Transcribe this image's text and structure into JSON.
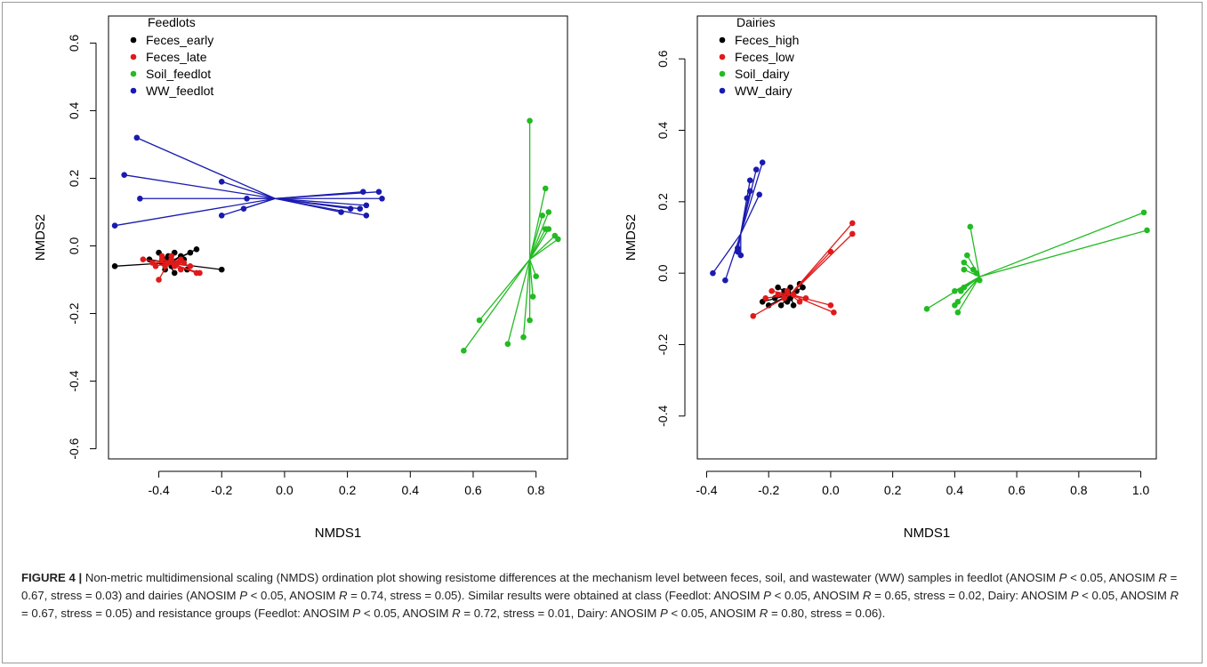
{
  "caption": {
    "label": "FIGURE 4 |",
    "parts": [
      {
        "t": " Non-metric multidimensional scaling (NMDS) ordination plot showing resistome differences at the mechanism level between feces, soil, and wastewater (WW) samples in feedlot (ANOSIM "
      },
      {
        "t": "P",
        "i": true
      },
      {
        "t": " < 0.05, ANOSIM "
      },
      {
        "t": "R",
        "i": true
      },
      {
        "t": " = 0.67, stress = 0.03) and dairies (ANOSIM "
      },
      {
        "t": "P",
        "i": true
      },
      {
        "t": " < 0.05, ANOSIM "
      },
      {
        "t": "R",
        "i": true
      },
      {
        "t": " = 0.74, stress = 0.05). Similar results were obtained at class (Feedlot: ANOSIM "
      },
      {
        "t": "P",
        "i": true
      },
      {
        "t": " < 0.05, ANOSIM "
      },
      {
        "t": "R",
        "i": true
      },
      {
        "t": " = 0.65, stress = 0.02, Dairy: ANOSIM "
      },
      {
        "t": "P",
        "i": true
      },
      {
        "t": " < 0.05, ANOSIM "
      },
      {
        "t": "R",
        "i": true
      },
      {
        "t": " = 0.67, stress = 0.05) and resistance groups (Feedlot: ANOSIM "
      },
      {
        "t": "P",
        "i": true
      },
      {
        "t": " < 0.05, ANOSIM "
      },
      {
        "t": "R",
        "i": true
      },
      {
        "t": " = 0.72, stress = 0.01, Dairy: ANOSIM "
      },
      {
        "t": "P",
        "i": true
      },
      {
        "t": " < 0.05, ANOSIM "
      },
      {
        "t": "R",
        "i": true
      },
      {
        "t": " = 0.80, stress = 0.06)."
      }
    ]
  },
  "chart_data": [
    {
      "type": "scatter",
      "legend_title": "Feedlots",
      "legend_position": "top-left",
      "xlabel": "NMDS1",
      "ylabel": "NMDS2",
      "xlim": [
        -0.56,
        0.9
      ],
      "ylim": [
        -0.63,
        0.68
      ],
      "xticks": [
        -0.4,
        -0.2,
        0.0,
        0.2,
        0.4,
        0.6,
        0.8
      ],
      "xtick_labels": [
        "-0.4",
        "-0.2",
        "0.0",
        "0.2",
        "0.4",
        "0.6",
        "0.8"
      ],
      "yticks": [
        -0.6,
        -0.4,
        -0.2,
        0.0,
        0.2,
        0.4,
        0.6
      ],
      "ytick_labels": [
        "-0.6",
        "-0.4",
        "-0.2",
        "0.0",
        "0.2",
        "0.4",
        "0.6"
      ],
      "grid": false,
      "series": [
        {
          "name": "Feces_early",
          "color": "#000000",
          "centroid": [
            -0.37,
            -0.05
          ],
          "points": [
            [
              -0.54,
              -0.06
            ],
            [
              -0.43,
              -0.04
            ],
            [
              -0.4,
              -0.02
            ],
            [
              -0.39,
              -0.05
            ],
            [
              -0.38,
              -0.07
            ],
            [
              -0.37,
              -0.03
            ],
            [
              -0.36,
              -0.06
            ],
            [
              -0.35,
              -0.02
            ],
            [
              -0.34,
              -0.05
            ],
            [
              -0.33,
              -0.03
            ],
            [
              -0.32,
              -0.04
            ],
            [
              -0.31,
              -0.07
            ],
            [
              -0.3,
              -0.02
            ],
            [
              -0.28,
              -0.01
            ],
            [
              -0.35,
              -0.08
            ],
            [
              -0.38,
              -0.04
            ],
            [
              -0.2,
              -0.07
            ]
          ]
        },
        {
          "name": "Feces_late",
          "color": "#e01a1a",
          "centroid": [
            -0.37,
            -0.05
          ],
          "points": [
            [
              -0.45,
              -0.04
            ],
            [
              -0.42,
              -0.05
            ],
            [
              -0.41,
              -0.06
            ],
            [
              -0.4,
              -0.1
            ],
            [
              -0.39,
              -0.04
            ],
            [
              -0.38,
              -0.06
            ],
            [
              -0.37,
              -0.05
            ],
            [
              -0.36,
              -0.04
            ],
            [
              -0.35,
              -0.06
            ],
            [
              -0.34,
              -0.05
            ],
            [
              -0.33,
              -0.07
            ],
            [
              -0.32,
              -0.05
            ],
            [
              -0.3,
              -0.06
            ],
            [
              -0.28,
              -0.08
            ],
            [
              -0.27,
              -0.08
            ],
            [
              -0.39,
              -0.03
            ],
            [
              -0.36,
              -0.03
            ],
            [
              -0.33,
              -0.04
            ]
          ]
        },
        {
          "name": "Soil_feedlot",
          "color": "#22bb22",
          "centroid": [
            0.78,
            -0.04
          ],
          "points": [
            [
              0.78,
              0.37
            ],
            [
              0.83,
              0.17
            ],
            [
              0.82,
              0.09
            ],
            [
              0.84,
              0.1
            ],
            [
              0.83,
              0.05
            ],
            [
              0.84,
              0.05
            ],
            [
              0.86,
              0.03
            ],
            [
              0.87,
              0.02
            ],
            [
              0.8,
              -0.09
            ],
            [
              0.79,
              -0.15
            ],
            [
              0.78,
              -0.22
            ],
            [
              0.76,
              -0.27
            ],
            [
              0.71,
              -0.29
            ],
            [
              0.62,
              -0.22
            ],
            [
              0.57,
              -0.31
            ]
          ]
        },
        {
          "name": "WW_feedlot",
          "color": "#1a1ab0",
          "centroid": [
            -0.03,
            0.14
          ],
          "points": [
            [
              -0.47,
              0.32
            ],
            [
              -0.51,
              0.21
            ],
            [
              -0.46,
              0.14
            ],
            [
              -0.54,
              0.06
            ],
            [
              -0.2,
              0.19
            ],
            [
              -0.12,
              0.14
            ],
            [
              -0.13,
              0.11
            ],
            [
              -0.2,
              0.09
            ],
            [
              0.18,
              0.1
            ],
            [
              0.21,
              0.11
            ],
            [
              0.24,
              0.11
            ],
            [
              0.26,
              0.12
            ],
            [
              0.25,
              0.16
            ],
            [
              0.3,
              0.16
            ],
            [
              0.31,
              0.14
            ],
            [
              0.26,
              0.09
            ]
          ]
        }
      ]
    },
    {
      "type": "scatter",
      "legend_title": "Dairies",
      "legend_position": "top-left",
      "xlabel": "NMDS1",
      "ylabel": "NMDS2",
      "xlim": [
        -0.43,
        1.05
      ],
      "ylim": [
        -0.52,
        0.72
      ],
      "xticks": [
        -0.4,
        -0.2,
        0.0,
        0.2,
        0.4,
        0.6,
        0.8,
        1.0
      ],
      "xtick_labels": [
        "-0.4",
        "-0.2",
        "0.0",
        "0.2",
        "0.4",
        "0.6",
        "0.8",
        "1.0"
      ],
      "yticks": [
        -0.4,
        -0.2,
        0.0,
        0.2,
        0.4,
        0.6
      ],
      "ytick_labels": [
        "-0.4",
        "-0.2",
        "0.0",
        "0.2",
        "0.4",
        "0.6"
      ],
      "grid": false,
      "series": [
        {
          "name": "Feces_high",
          "color": "#000000",
          "centroid": [
            -0.13,
            -0.06
          ],
          "points": [
            [
              -0.22,
              -0.08
            ],
            [
              -0.2,
              -0.09
            ],
            [
              -0.18,
              -0.07
            ],
            [
              -0.17,
              -0.04
            ],
            [
              -0.16,
              -0.09
            ],
            [
              -0.15,
              -0.06
            ],
            [
              -0.14,
              -0.08
            ],
            [
              -0.13,
              -0.04
            ],
            [
              -0.12,
              -0.09
            ],
            [
              -0.11,
              -0.05
            ],
            [
              -0.1,
              -0.03
            ],
            [
              -0.09,
              -0.04
            ],
            [
              -0.13,
              -0.07
            ],
            [
              -0.15,
              -0.05
            ]
          ]
        },
        {
          "name": "Feces_low",
          "color": "#e01a1a",
          "centroid": [
            -0.13,
            -0.06
          ],
          "points": [
            [
              -0.25,
              -0.12
            ],
            [
              -0.21,
              -0.07
            ],
            [
              -0.19,
              -0.05
            ],
            [
              -0.17,
              -0.06
            ],
            [
              -0.15,
              -0.07
            ],
            [
              -0.14,
              -0.05
            ],
            [
              -0.12,
              -0.06
            ],
            [
              -0.1,
              -0.08
            ],
            [
              -0.08,
              -0.07
            ],
            [
              0.0,
              -0.09
            ],
            [
              0.01,
              -0.11
            ],
            [
              0.0,
              0.06
            ],
            [
              0.07,
              0.11
            ],
            [
              0.07,
              0.14
            ]
          ]
        },
        {
          "name": "Soil_dairy",
          "color": "#22bb22",
          "centroid": [
            0.48,
            -0.01
          ],
          "points": [
            [
              0.31,
              -0.1
            ],
            [
              0.4,
              -0.05
            ],
            [
              0.4,
              -0.09
            ],
            [
              0.41,
              -0.11
            ],
            [
              0.41,
              -0.08
            ],
            [
              0.42,
              -0.05
            ],
            [
              0.43,
              -0.04
            ],
            [
              0.43,
              0.01
            ],
            [
              0.43,
              0.03
            ],
            [
              0.44,
              0.05
            ],
            [
              0.45,
              0.13
            ],
            [
              0.46,
              0.01
            ],
            [
              0.47,
              0.0
            ],
            [
              0.48,
              -0.02
            ],
            [
              1.01,
              0.17
            ],
            [
              1.02,
              0.12
            ]
          ]
        },
        {
          "name": "WW_dairy",
          "color": "#1a1ab0",
          "centroid": [
            -0.29,
            0.11
          ],
          "points": [
            [
              -0.22,
              0.31
            ],
            [
              -0.24,
              0.29
            ],
            [
              -0.26,
              0.26
            ],
            [
              -0.23,
              0.22
            ],
            [
              -0.26,
              0.23
            ],
            [
              -0.27,
              0.21
            ],
            [
              -0.3,
              0.07
            ],
            [
              -0.3,
              0.06
            ],
            [
              -0.29,
              0.05
            ],
            [
              -0.38,
              0.0
            ],
            [
              -0.34,
              -0.02
            ]
          ]
        }
      ]
    }
  ]
}
